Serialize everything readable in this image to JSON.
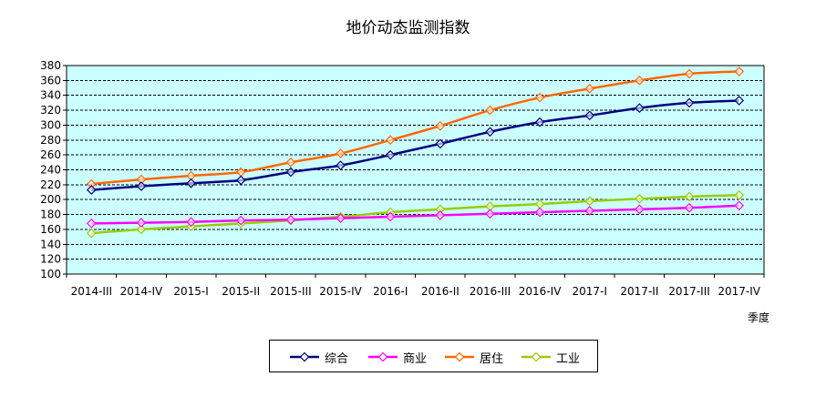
{
  "chart_data": {
    "type": "line",
    "title": "地价动态监测指数",
    "xlabel": "季度",
    "ylabel": "",
    "ylim": [
      100,
      380
    ],
    "ytick_step": 20,
    "grid": true,
    "legend_position": "bottom",
    "categories": [
      "2014-III",
      "2014-IV",
      "2015-I",
      "2015-II",
      "2015-III",
      "2015-IV",
      "2016-I",
      "2016-II",
      "2016-III",
      "2016-IV",
      "2017-I",
      "2017-II",
      "2017-III",
      "2017-IV"
    ],
    "series": [
      {
        "name": "综合",
        "color": "#000080",
        "values": [
          213,
          218,
          222,
          226,
          237,
          246,
          260,
          275,
          291,
          304,
          313,
          323,
          330,
          333
        ]
      },
      {
        "name": "商业",
        "color": "#ff00ff",
        "values": [
          168,
          169,
          170,
          172,
          173,
          175,
          177,
          179,
          181,
          183,
          185,
          187,
          189,
          192
        ]
      },
      {
        "name": "居住",
        "color": "#ff6600",
        "values": [
          221,
          227,
          232,
          237,
          250,
          262,
          280,
          299,
          320,
          337,
          349,
          360,
          369,
          372
        ]
      },
      {
        "name": "工业",
        "color": "#99cc00",
        "values": [
          155,
          160,
          164,
          168,
          172,
          177,
          183,
          187,
          191,
          194,
          198,
          201,
          204,
          206
        ]
      }
    ]
  },
  "colors": {
    "plot_background": "#ccffff",
    "grid": "#000000"
  }
}
